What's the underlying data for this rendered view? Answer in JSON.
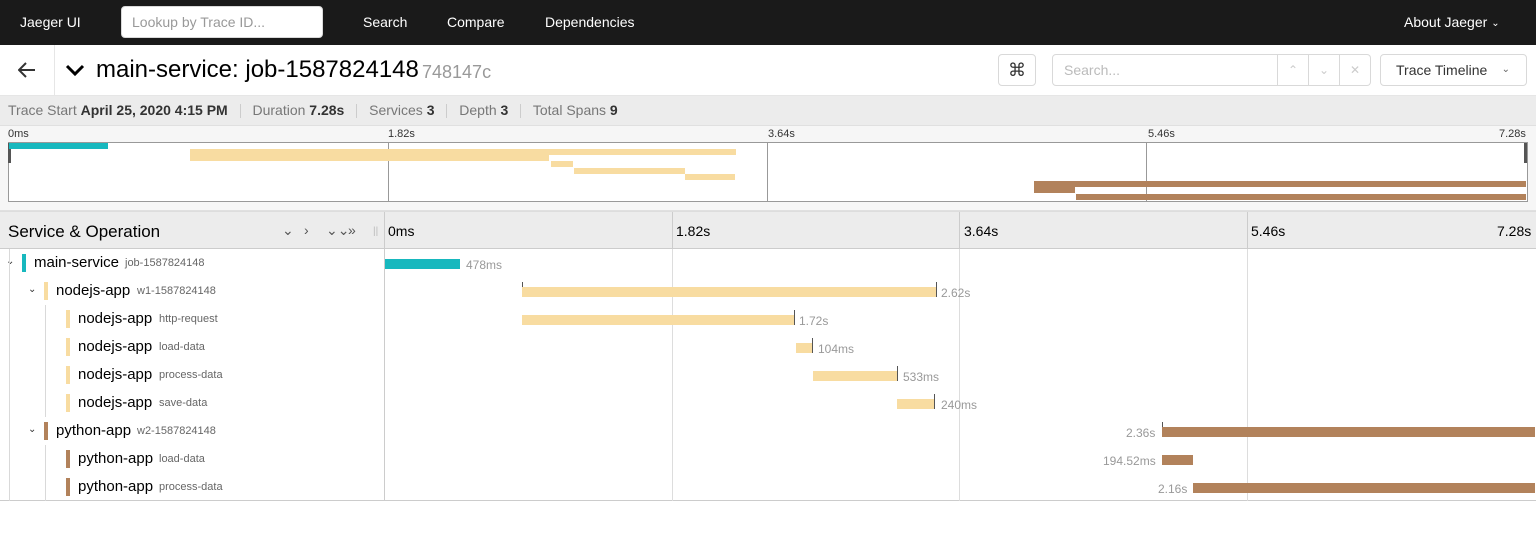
{
  "nav": {
    "brand": "Jaeger UI",
    "lookup_placeholder": "Lookup by Trace ID...",
    "links": [
      "Search",
      "Compare",
      "Dependencies"
    ],
    "about": "About Jaeger"
  },
  "trace": {
    "title": "main-service: job-1587824148",
    "id": "748147c",
    "search_placeholder": "Search...",
    "view_mode": "Trace Timeline"
  },
  "summary": {
    "start_label": "Trace Start",
    "start_value": "April 25, 2020 4:15 PM",
    "duration_label": "Duration",
    "duration_value": "7.28s",
    "services_label": "Services",
    "services_value": "3",
    "depth_label": "Depth",
    "depth_value": "3",
    "spans_label": "Total Spans",
    "spans_value": "9"
  },
  "timeline": {
    "ticks": [
      "0ms",
      "1.82s",
      "3.64s",
      "5.46s",
      "7.28s"
    ],
    "header_title": "Service & Operation"
  },
  "colors": {
    "main-service": "#17b8be",
    "nodejs-app": "#f8dcA1",
    "python-app": "#b2825b"
  },
  "spans": [
    {
      "service": "main-service",
      "operation": "job-1587824148",
      "duration": "478ms"
    },
    {
      "service": "nodejs-app",
      "operation": "w1-1587824148",
      "duration": "2.62s"
    },
    {
      "service": "nodejs-app",
      "operation": "http-request",
      "duration": "1.72s"
    },
    {
      "service": "nodejs-app",
      "operation": "load-data",
      "duration": "104ms"
    },
    {
      "service": "nodejs-app",
      "operation": "process-data",
      "duration": "533ms"
    },
    {
      "service": "nodejs-app",
      "operation": "save-data",
      "duration": "240ms"
    },
    {
      "service": "python-app",
      "operation": "w2-1587824148",
      "duration": "2.36s"
    },
    {
      "service": "python-app",
      "operation": "load-data",
      "duration": "194.52ms"
    },
    {
      "service": "python-app",
      "operation": "process-data",
      "duration": "2.16s"
    }
  ]
}
